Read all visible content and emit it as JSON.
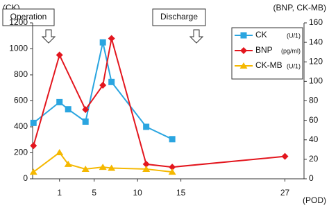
{
  "chart_data": {
    "type": "line",
    "y_label": "(CK)",
    "y2_label": "(BNP, CK-MB)",
    "x_label": "(POD)",
    "annotations": [
      "Operation",
      "Discharge"
    ],
    "xlim": [
      -2.1,
      29.2
    ],
    "xticks": [
      1,
      5,
      10,
      15,
      27
    ],
    "ylim": [
      0,
      1200
    ],
    "yticks": [
      0,
      200,
      400,
      600,
      800,
      1000,
      1200
    ],
    "y2lim": [
      0,
      160
    ],
    "y2ticks": [
      0,
      20,
      40,
      60,
      80,
      100,
      120,
      140,
      160
    ],
    "grid": false,
    "legend": "upper right",
    "series": [
      {
        "name": "CK",
        "unit": "(U/1)",
        "color": "#2aa5e0",
        "marker": "square",
        "axis": "y",
        "x": [
          -2,
          1,
          2,
          4,
          6,
          7,
          11,
          14
        ],
        "values": [
          430,
          590,
          535,
          440,
          1050,
          745,
          400,
          305
        ]
      },
      {
        "name": "BNP",
        "unit": "(pg/ml)",
        "color": "#e3161e",
        "marker": "diamond",
        "axis": "y2",
        "x": [
          -2,
          1,
          4,
          6,
          7,
          11,
          14,
          27
        ],
        "values": [
          34,
          127,
          71,
          96,
          144,
          15,
          12,
          23
        ]
      },
      {
        "name": "CK-MB",
        "unit": "(U/1)",
        "color": "#f5b800",
        "marker": "triangle",
        "axis": "y2",
        "x": [
          -2,
          1,
          2,
          4,
          6,
          7,
          11,
          14
        ],
        "values": [
          7,
          27,
          15,
          10,
          12,
          11,
          10,
          7
        ]
      }
    ]
  }
}
